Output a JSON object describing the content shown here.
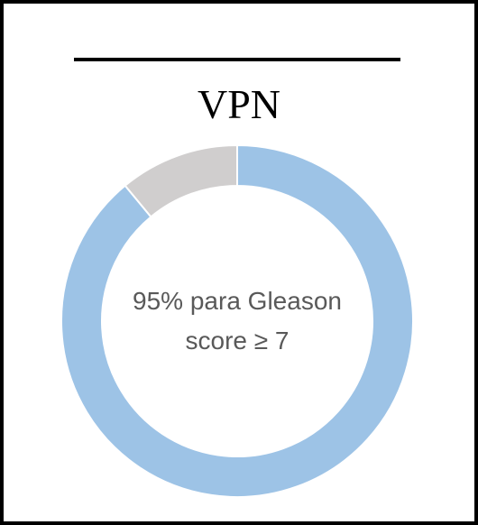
{
  "title": "VPN",
  "chart_data": {
    "type": "pie",
    "variant": "donut",
    "title": "VPN",
    "center_label_lines": [
      "95% para Gleason",
      "score ≥ 7"
    ],
    "slices": [
      {
        "value": 89,
        "color": "#9dc3e6"
      },
      {
        "value": 11,
        "color": "#d0cece"
      }
    ],
    "start": "top",
    "direction": "clockwise"
  }
}
